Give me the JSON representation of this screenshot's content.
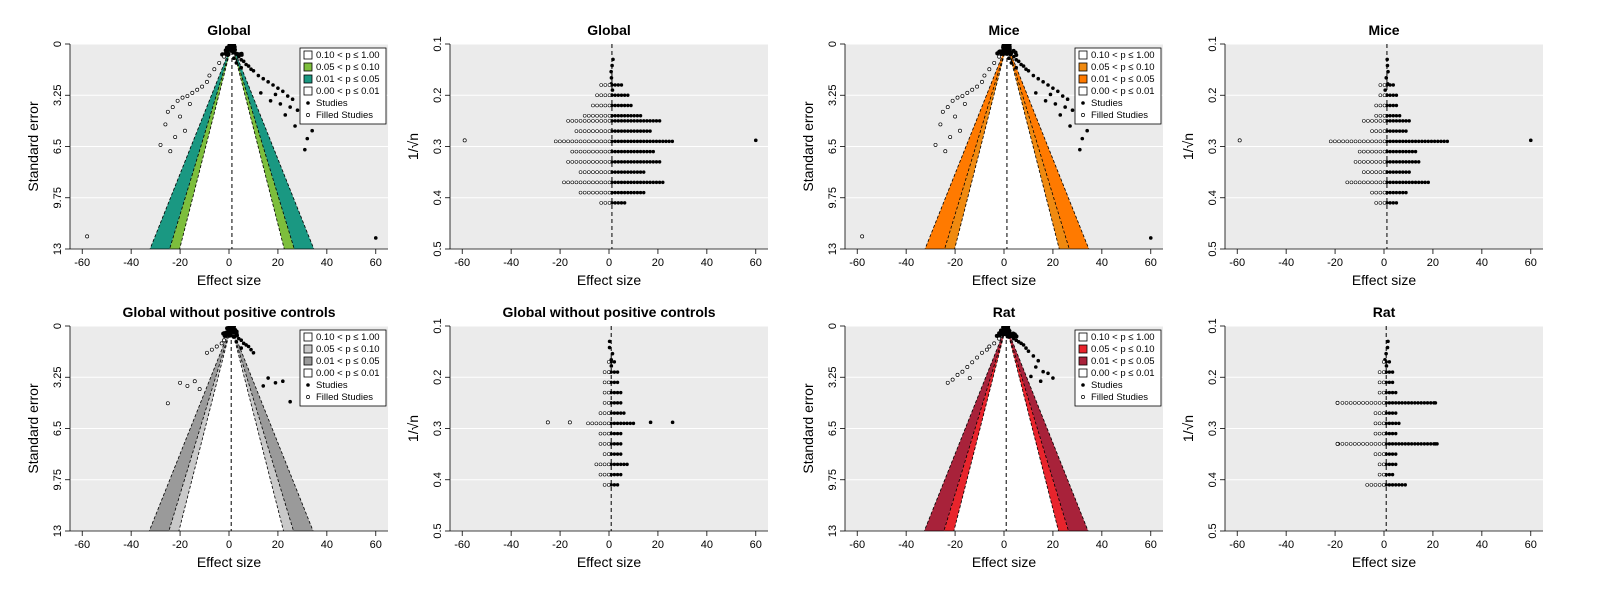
{
  "figure": {
    "colors": {
      "panel_bg": "#EBEBEB",
      "green_010": "#7DBE3C",
      "green_005": "#1A9882",
      "orange_010": "#F08A10",
      "orange_005": "#FF7A00",
      "gray_010": "#C9C9C9",
      "gray_005": "#9A9A9A",
      "red_010": "#E8242C",
      "red_005": "#A8223A",
      "point": "#000000"
    }
  },
  "chart_data": [
    {
      "id": "global-contour",
      "type": "scatter",
      "variant": "contour-funnel",
      "title": "Global",
      "xlabel": "Effect size",
      "ylabel": "Standard error",
      "xlim": [
        -65,
        65
      ],
      "ylim": [
        13,
        0
      ],
      "summary": 1.2,
      "xticks": [
        "-60",
        "-40",
        "-20",
        "0",
        "20",
        "40",
        "60"
      ],
      "yticks": [
        "0",
        "3.25",
        "6.5",
        "9.75",
        "13"
      ],
      "legend": [
        "0.10 < p ≤ 1.00",
        "0.05 < p ≤ 0.10",
        "0.01 < p ≤ 0.05",
        "0.00 < p ≤ 0.01",
        "Studies",
        "Filled Studies"
      ],
      "legend_colors": [
        "#FFFFFF",
        "#7DBE3C",
        "#1A9882",
        "#FFFFFF"
      ],
      "studies": [
        [
          0,
          0.3
        ],
        [
          1,
          0.4
        ],
        [
          2,
          0.5
        ],
        [
          3,
          0.6
        ],
        [
          -1,
          0.6
        ],
        [
          4,
          0.8
        ],
        [
          2,
          0.9
        ],
        [
          5,
          1.0
        ],
        [
          6,
          1.1
        ],
        [
          3,
          1.2
        ],
        [
          7,
          1.3
        ],
        [
          8,
          1.4
        ],
        [
          5,
          1.5
        ],
        [
          9,
          1.6
        ],
        [
          10,
          1.7
        ],
        [
          12,
          2.0
        ],
        [
          14,
          2.2
        ],
        [
          16,
          2.4
        ],
        [
          18,
          2.6
        ],
        [
          20,
          2.8
        ],
        [
          22,
          3.0
        ],
        [
          13,
          3.1
        ],
        [
          19,
          3.2
        ],
        [
          24,
          3.3
        ],
        [
          26,
          3.5
        ],
        [
          17,
          3.6
        ],
        [
          21,
          3.8
        ],
        [
          25,
          4.0
        ],
        [
          28,
          4.2
        ],
        [
          23,
          4.5
        ],
        [
          30,
          4.8
        ],
        [
          27,
          5.2
        ],
        [
          34,
          5.5
        ],
        [
          32,
          6.0
        ],
        [
          31,
          6.7
        ],
        [
          60,
          12.3
        ]
      ],
      "filled": [
        [
          -2,
          0.8
        ],
        [
          -4,
          1.2
        ],
        [
          -6,
          1.6
        ],
        [
          -8,
          2.0
        ],
        [
          -9,
          2.4
        ],
        [
          -11,
          2.7
        ],
        [
          -13,
          2.9
        ],
        [
          -15,
          3.1
        ],
        [
          -17,
          3.3
        ],
        [
          -19,
          3.4
        ],
        [
          -21,
          3.6
        ],
        [
          -16,
          3.8
        ],
        [
          -23,
          4.0
        ],
        [
          -25,
          4.3
        ],
        [
          -20,
          4.6
        ],
        [
          -26,
          5.1
        ],
        [
          -18,
          5.5
        ],
        [
          -22,
          5.9
        ],
        [
          -28,
          6.4
        ],
        [
          -24,
          6.8
        ],
        [
          -58,
          12.2
        ]
      ]
    },
    {
      "id": "global-sqrt",
      "type": "scatter",
      "variant": "sqrt-funnel",
      "title": "Global",
      "xlabel": "Effect size",
      "ylabel": "1/√n",
      "xlim": [
        -65,
        65
      ],
      "ylim": [
        0.5,
        0.1
      ],
      "summary": 1.2,
      "xticks": [
        "-60",
        "-40",
        "-20",
        "0",
        "20",
        "40",
        "60"
      ],
      "yticks": [
        "0.1",
        "0.2",
        "0.3",
        "0.4",
        "0.5"
      ],
      "spreads": [
        [
          0.18,
          5
        ],
        [
          0.2,
          7
        ],
        [
          0.22,
          9
        ],
        [
          0.24,
          12
        ],
        [
          0.25,
          20
        ],
        [
          0.27,
          16
        ],
        [
          0.29,
          25
        ],
        [
          0.31,
          18
        ],
        [
          0.33,
          20
        ],
        [
          0.35,
          14
        ],
        [
          0.37,
          22
        ],
        [
          0.39,
          14
        ],
        [
          0.41,
          6
        ]
      ],
      "extremes": [
        [
          60,
          0.288,
          "s"
        ],
        [
          -59,
          0.288,
          "f"
        ]
      ]
    },
    {
      "id": "mice-contour",
      "type": "scatter",
      "variant": "contour-funnel",
      "title": "Mice",
      "xlabel": "Effect size",
      "ylabel": "Standard error",
      "xlim": [
        -65,
        65
      ],
      "ylim": [
        13,
        0
      ],
      "summary": 1.2,
      "xticks": [
        "-60",
        "-40",
        "-20",
        "0",
        "20",
        "40",
        "60"
      ],
      "yticks": [
        "0",
        "3.25",
        "6.5",
        "9.75",
        "13"
      ],
      "legend": [
        "0.10 < p ≤ 1.00",
        "0.05 < p ≤ 0.10",
        "0.01 < p ≤ 0.05",
        "0.00 < p ≤ 0.01",
        "Studies",
        "Filled Studies"
      ],
      "legend_colors": [
        "#FFFFFF",
        "#F08A10",
        "#FF7A00",
        "#FFFFFF"
      ],
      "studies": [
        [
          0,
          0.3
        ],
        [
          1,
          0.4
        ],
        [
          2,
          0.5
        ],
        [
          3,
          0.6
        ],
        [
          -1,
          0.6
        ],
        [
          4,
          0.8
        ],
        [
          2,
          0.9
        ],
        [
          5,
          1.0
        ],
        [
          6,
          1.1
        ],
        [
          3,
          1.2
        ],
        [
          7,
          1.3
        ],
        [
          8,
          1.4
        ],
        [
          5,
          1.5
        ],
        [
          9,
          1.6
        ],
        [
          10,
          1.7
        ],
        [
          12,
          2.0
        ],
        [
          14,
          2.2
        ],
        [
          16,
          2.4
        ],
        [
          18,
          2.6
        ],
        [
          20,
          2.8
        ],
        [
          22,
          3.0
        ],
        [
          13,
          3.1
        ],
        [
          19,
          3.2
        ],
        [
          24,
          3.3
        ],
        [
          26,
          3.5
        ],
        [
          17,
          3.6
        ],
        [
          21,
          3.8
        ],
        [
          25,
          4.0
        ],
        [
          28,
          4.2
        ],
        [
          23,
          4.5
        ],
        [
          30,
          4.8
        ],
        [
          27,
          5.2
        ],
        [
          34,
          5.5
        ],
        [
          32,
          6.0
        ],
        [
          31,
          6.7
        ],
        [
          60,
          12.3
        ]
      ],
      "filled": [
        [
          -2,
          0.8
        ],
        [
          -4,
          1.2
        ],
        [
          -6,
          1.6
        ],
        [
          -8,
          2.0
        ],
        [
          -9,
          2.4
        ],
        [
          -11,
          2.7
        ],
        [
          -13,
          2.9
        ],
        [
          -15,
          3.1
        ],
        [
          -17,
          3.3
        ],
        [
          -19,
          3.4
        ],
        [
          -21,
          3.6
        ],
        [
          -16,
          3.8
        ],
        [
          -23,
          4.0
        ],
        [
          -25,
          4.3
        ],
        [
          -20,
          4.6
        ],
        [
          -26,
          5.1
        ],
        [
          -18,
          5.5
        ],
        [
          -22,
          5.9
        ],
        [
          -28,
          6.4
        ],
        [
          -24,
          6.8
        ],
        [
          -58,
          12.2
        ]
      ]
    },
    {
      "id": "mice-sqrt",
      "type": "scatter",
      "variant": "sqrt-funnel",
      "title": "Mice",
      "xlabel": "Effect size",
      "ylabel": "1/√n",
      "xlim": [
        -65,
        65
      ],
      "ylim": [
        0.5,
        0.1
      ],
      "summary": 1.2,
      "xticks": [
        "-60",
        "-40",
        "-20",
        "0",
        "20",
        "40",
        "60"
      ],
      "yticks": [
        "0.1",
        "0.2",
        "0.3",
        "0.4",
        "0.5"
      ],
      "spreads": [
        [
          0.18,
          3
        ],
        [
          0.2,
          4
        ],
        [
          0.22,
          5
        ],
        [
          0.24,
          6
        ],
        [
          0.25,
          10
        ],
        [
          0.27,
          8
        ],
        [
          0.29,
          25
        ],
        [
          0.31,
          12
        ],
        [
          0.33,
          14
        ],
        [
          0.35,
          10
        ],
        [
          0.37,
          18
        ],
        [
          0.39,
          8
        ],
        [
          0.41,
          5
        ]
      ],
      "extremes": [
        [
          60,
          0.288,
          "s"
        ],
        [
          -59,
          0.288,
          "f"
        ]
      ]
    },
    {
      "id": "global-nopc-contour",
      "type": "scatter",
      "variant": "contour-funnel",
      "title": "Global without positive controls",
      "xlabel": "Effect size",
      "ylabel": "Standard error",
      "xlim": [
        -65,
        65
      ],
      "ylim": [
        13,
        0
      ],
      "summary": 0.9,
      "xticks": [
        "-60",
        "-40",
        "-20",
        "0",
        "20",
        "40",
        "60"
      ],
      "yticks": [
        "0",
        "3.25",
        "6.5",
        "9.75",
        "13"
      ],
      "legend": [
        "0.10 < p ≤ 1.00",
        "0.05 < p ≤ 0.10",
        "0.01 < p ≤ 0.05",
        "0.00 < p ≤ 0.01",
        "Studies",
        "Filled Studies"
      ],
      "legend_colors": [
        "#FFFFFF",
        "#C9C9C9",
        "#9A9A9A",
        "#FFFFFF"
      ],
      "studies": [
        [
          0,
          0.2
        ],
        [
          1,
          0.3
        ],
        [
          2,
          0.4
        ],
        [
          3,
          0.5
        ],
        [
          -1,
          0.5
        ],
        [
          2,
          0.7
        ],
        [
          4,
          0.8
        ],
        [
          5,
          0.9
        ],
        [
          3,
          1.0
        ],
        [
          6,
          1.1
        ],
        [
          7,
          1.2
        ],
        [
          8,
          1.3
        ],
        [
          5,
          1.4
        ],
        [
          9,
          1.5
        ],
        [
          10,
          1.7
        ],
        [
          16,
          3.3
        ],
        [
          19,
          3.6
        ],
        [
          22,
          3.5
        ],
        [
          14,
          3.8
        ],
        [
          25,
          4.8
        ]
      ],
      "filled": [
        [
          -2,
          0.9
        ],
        [
          -3,
          1.1
        ],
        [
          -5,
          1.3
        ],
        [
          -7,
          1.5
        ],
        [
          -9,
          1.7
        ],
        [
          -14,
          3.5
        ],
        [
          -17,
          3.8
        ],
        [
          -20,
          3.6
        ],
        [
          -12,
          4.0
        ],
        [
          -25,
          4.9
        ]
      ]
    },
    {
      "id": "global-nopc-sqrt",
      "type": "scatter",
      "variant": "sqrt-funnel",
      "title": "Global without positive controls",
      "xlabel": "Effect size",
      "ylabel": "1/√n",
      "xlim": [
        -65,
        65
      ],
      "ylim": [
        0.5,
        0.1
      ],
      "summary": 0.9,
      "xticks": [
        "-60",
        "-40",
        "-20",
        "0",
        "20",
        "40",
        "60"
      ],
      "yticks": [
        "0.1",
        "0.2",
        "0.3",
        "0.4",
        "0.5"
      ],
      "spreads": [
        [
          0.17,
          2
        ],
        [
          0.19,
          3
        ],
        [
          0.21,
          3
        ],
        [
          0.23,
          4
        ],
        [
          0.25,
          4
        ],
        [
          0.27,
          6
        ],
        [
          0.29,
          10
        ],
        [
          0.31,
          5
        ],
        [
          0.33,
          5
        ],
        [
          0.35,
          4
        ],
        [
          0.37,
          7
        ],
        [
          0.39,
          5
        ],
        [
          0.41,
          3
        ]
      ],
      "extremes": [
        [
          26,
          0.288,
          "s"
        ],
        [
          -25,
          0.288,
          "f"
        ],
        [
          17,
          0.288,
          "s"
        ],
        [
          -16,
          0.288,
          "f"
        ]
      ]
    },
    {
      "id": "rat-contour",
      "type": "scatter",
      "variant": "contour-funnel",
      "title": "Rat",
      "xlabel": "Effect size",
      "ylabel": "Standard error",
      "xlim": [
        -65,
        65
      ],
      "ylim": [
        13,
        0
      ],
      "summary": 0.9,
      "xticks": [
        "-60",
        "-40",
        "-20",
        "0",
        "20",
        "40",
        "60"
      ],
      "yticks": [
        "0",
        "3.25",
        "6.5",
        "9.75",
        "13"
      ],
      "legend": [
        "0.10 < p ≤ 1.00",
        "0.05 < p ≤ 0.10",
        "0.01 < p ≤ 0.05",
        "0.00 < p ≤ 0.01",
        "Studies",
        "Filled Studies"
      ],
      "legend_colors": [
        "#FFFFFF",
        "#E8242C",
        "#A8223A",
        "#FFFFFF"
      ],
      "studies": [
        [
          0,
          0.2
        ],
        [
          1,
          0.3
        ],
        [
          2,
          0.4
        ],
        [
          3,
          0.5
        ],
        [
          -1,
          0.5
        ],
        [
          2,
          0.7
        ],
        [
          4,
          0.8
        ],
        [
          5,
          0.9
        ],
        [
          6,
          1.0
        ],
        [
          7,
          1.1
        ],
        [
          8,
          1.2
        ],
        [
          9,
          1.4
        ],
        [
          10,
          1.6
        ],
        [
          12,
          1.9
        ],
        [
          14,
          2.2
        ],
        [
          13,
          2.6
        ],
        [
          16,
          2.9
        ],
        [
          18,
          3.0
        ],
        [
          11,
          3.2
        ],
        [
          20,
          3.3
        ],
        [
          15,
          3.5
        ]
      ],
      "filled": [
        [
          -2,
          0.8
        ],
        [
          -4,
          1.1
        ],
        [
          -6,
          1.3
        ],
        [
          -7,
          1.5
        ],
        [
          -9,
          1.7
        ],
        [
          -11,
          2.0
        ],
        [
          -13,
          2.3
        ],
        [
          -15,
          2.6
        ],
        [
          -17,
          2.9
        ],
        [
          -19,
          3.1
        ],
        [
          -14,
          3.3
        ],
        [
          -21,
          3.4
        ],
        [
          -23,
          3.6
        ]
      ]
    },
    {
      "id": "rat-sqrt",
      "type": "scatter",
      "variant": "sqrt-funnel",
      "title": "Rat",
      "xlabel": "Effect size",
      "ylabel": "1/√n",
      "xlim": [
        -65,
        65
      ],
      "ylim": [
        0.5,
        0.1
      ],
      "summary": 0.9,
      "xticks": [
        "-60",
        "-40",
        "-20",
        "0",
        "20",
        "40",
        "60"
      ],
      "yticks": [
        "0.1",
        "0.2",
        "0.3",
        "0.4",
        "0.5"
      ],
      "spreads": [
        [
          0.17,
          2
        ],
        [
          0.19,
          3
        ],
        [
          0.21,
          3
        ],
        [
          0.23,
          4
        ],
        [
          0.25,
          20
        ],
        [
          0.27,
          5
        ],
        [
          0.29,
          6
        ],
        [
          0.31,
          5
        ],
        [
          0.33,
          22
        ],
        [
          0.35,
          5
        ],
        [
          0.37,
          4
        ],
        [
          0.39,
          3
        ],
        [
          0.41,
          9
        ]
      ],
      "extremes": [
        [
          21,
          0.25,
          "s"
        ],
        [
          -19,
          0.25,
          "f"
        ],
        [
          21,
          0.33,
          "s"
        ],
        [
          -19,
          0.33,
          "f"
        ]
      ]
    }
  ]
}
